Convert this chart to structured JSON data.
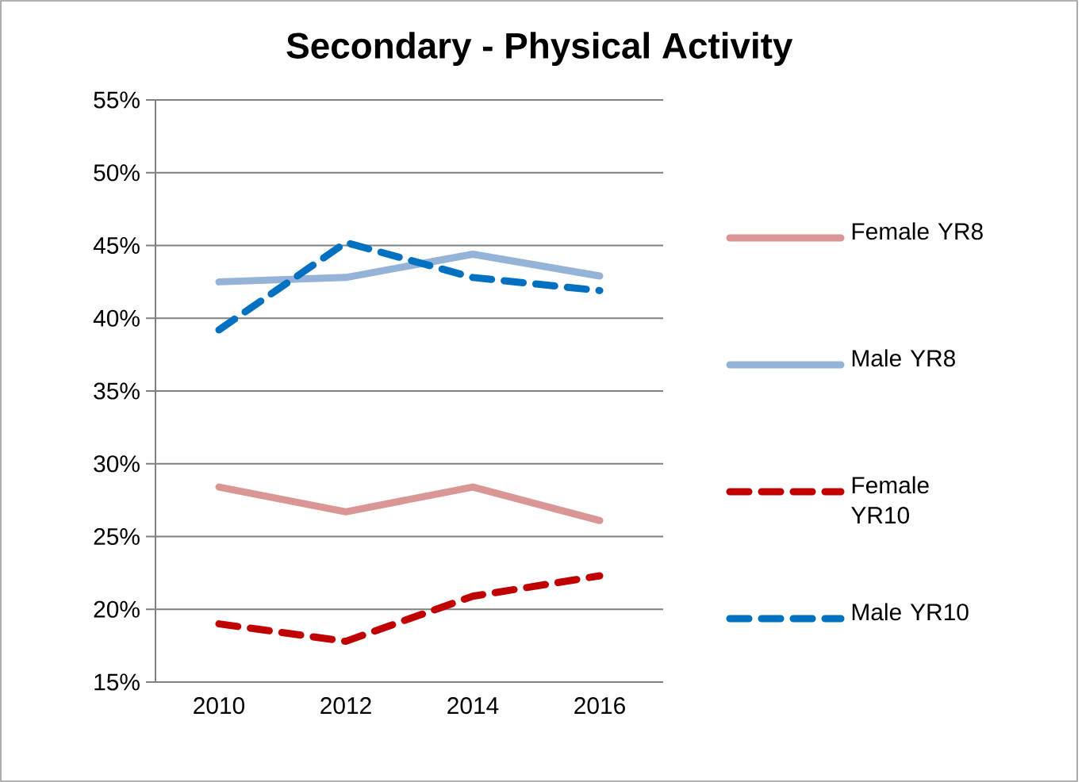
{
  "chart_data": {
    "type": "line",
    "title": "Secondary  - Physical Activity",
    "categories": [
      "2010",
      "2012",
      "2014",
      "2016"
    ],
    "series": [
      {
        "name": "Female YR8",
        "color": "#d99694",
        "line_style": "solid",
        "values": [
          28.4,
          26.7,
          28.4,
          26.1
        ]
      },
      {
        "name": "Male YR8",
        "color": "#95b3d7",
        "line_style": "solid",
        "values": [
          42.5,
          42.8,
          44.4,
          42.9
        ]
      },
      {
        "name": "Female YR10",
        "color": "#c00000",
        "line_style": "dashed",
        "values": [
          19.0,
          17.8,
          20.9,
          22.3
        ]
      },
      {
        "name": "Male YR10",
        "color": "#0070c0",
        "line_style": "dashed",
        "values": [
          39.2,
          45.2,
          42.8,
          41.9
        ]
      }
    ],
    "ylim": [
      15,
      55
    ],
    "yticks": [
      {
        "value": 15,
        "label": "15%"
      },
      {
        "value": 20,
        "label": "20%"
      },
      {
        "value": 25,
        "label": "25%"
      },
      {
        "value": 30,
        "label": "30%"
      },
      {
        "value": 35,
        "label": "35%"
      },
      {
        "value": 40,
        "label": "40%"
      },
      {
        "value": 45,
        "label": "45%"
      },
      {
        "value": 50,
        "label": "50%"
      },
      {
        "value": 55,
        "label": "55%"
      }
    ],
    "grid": "y",
    "legend": "right",
    "marker": "none"
  }
}
